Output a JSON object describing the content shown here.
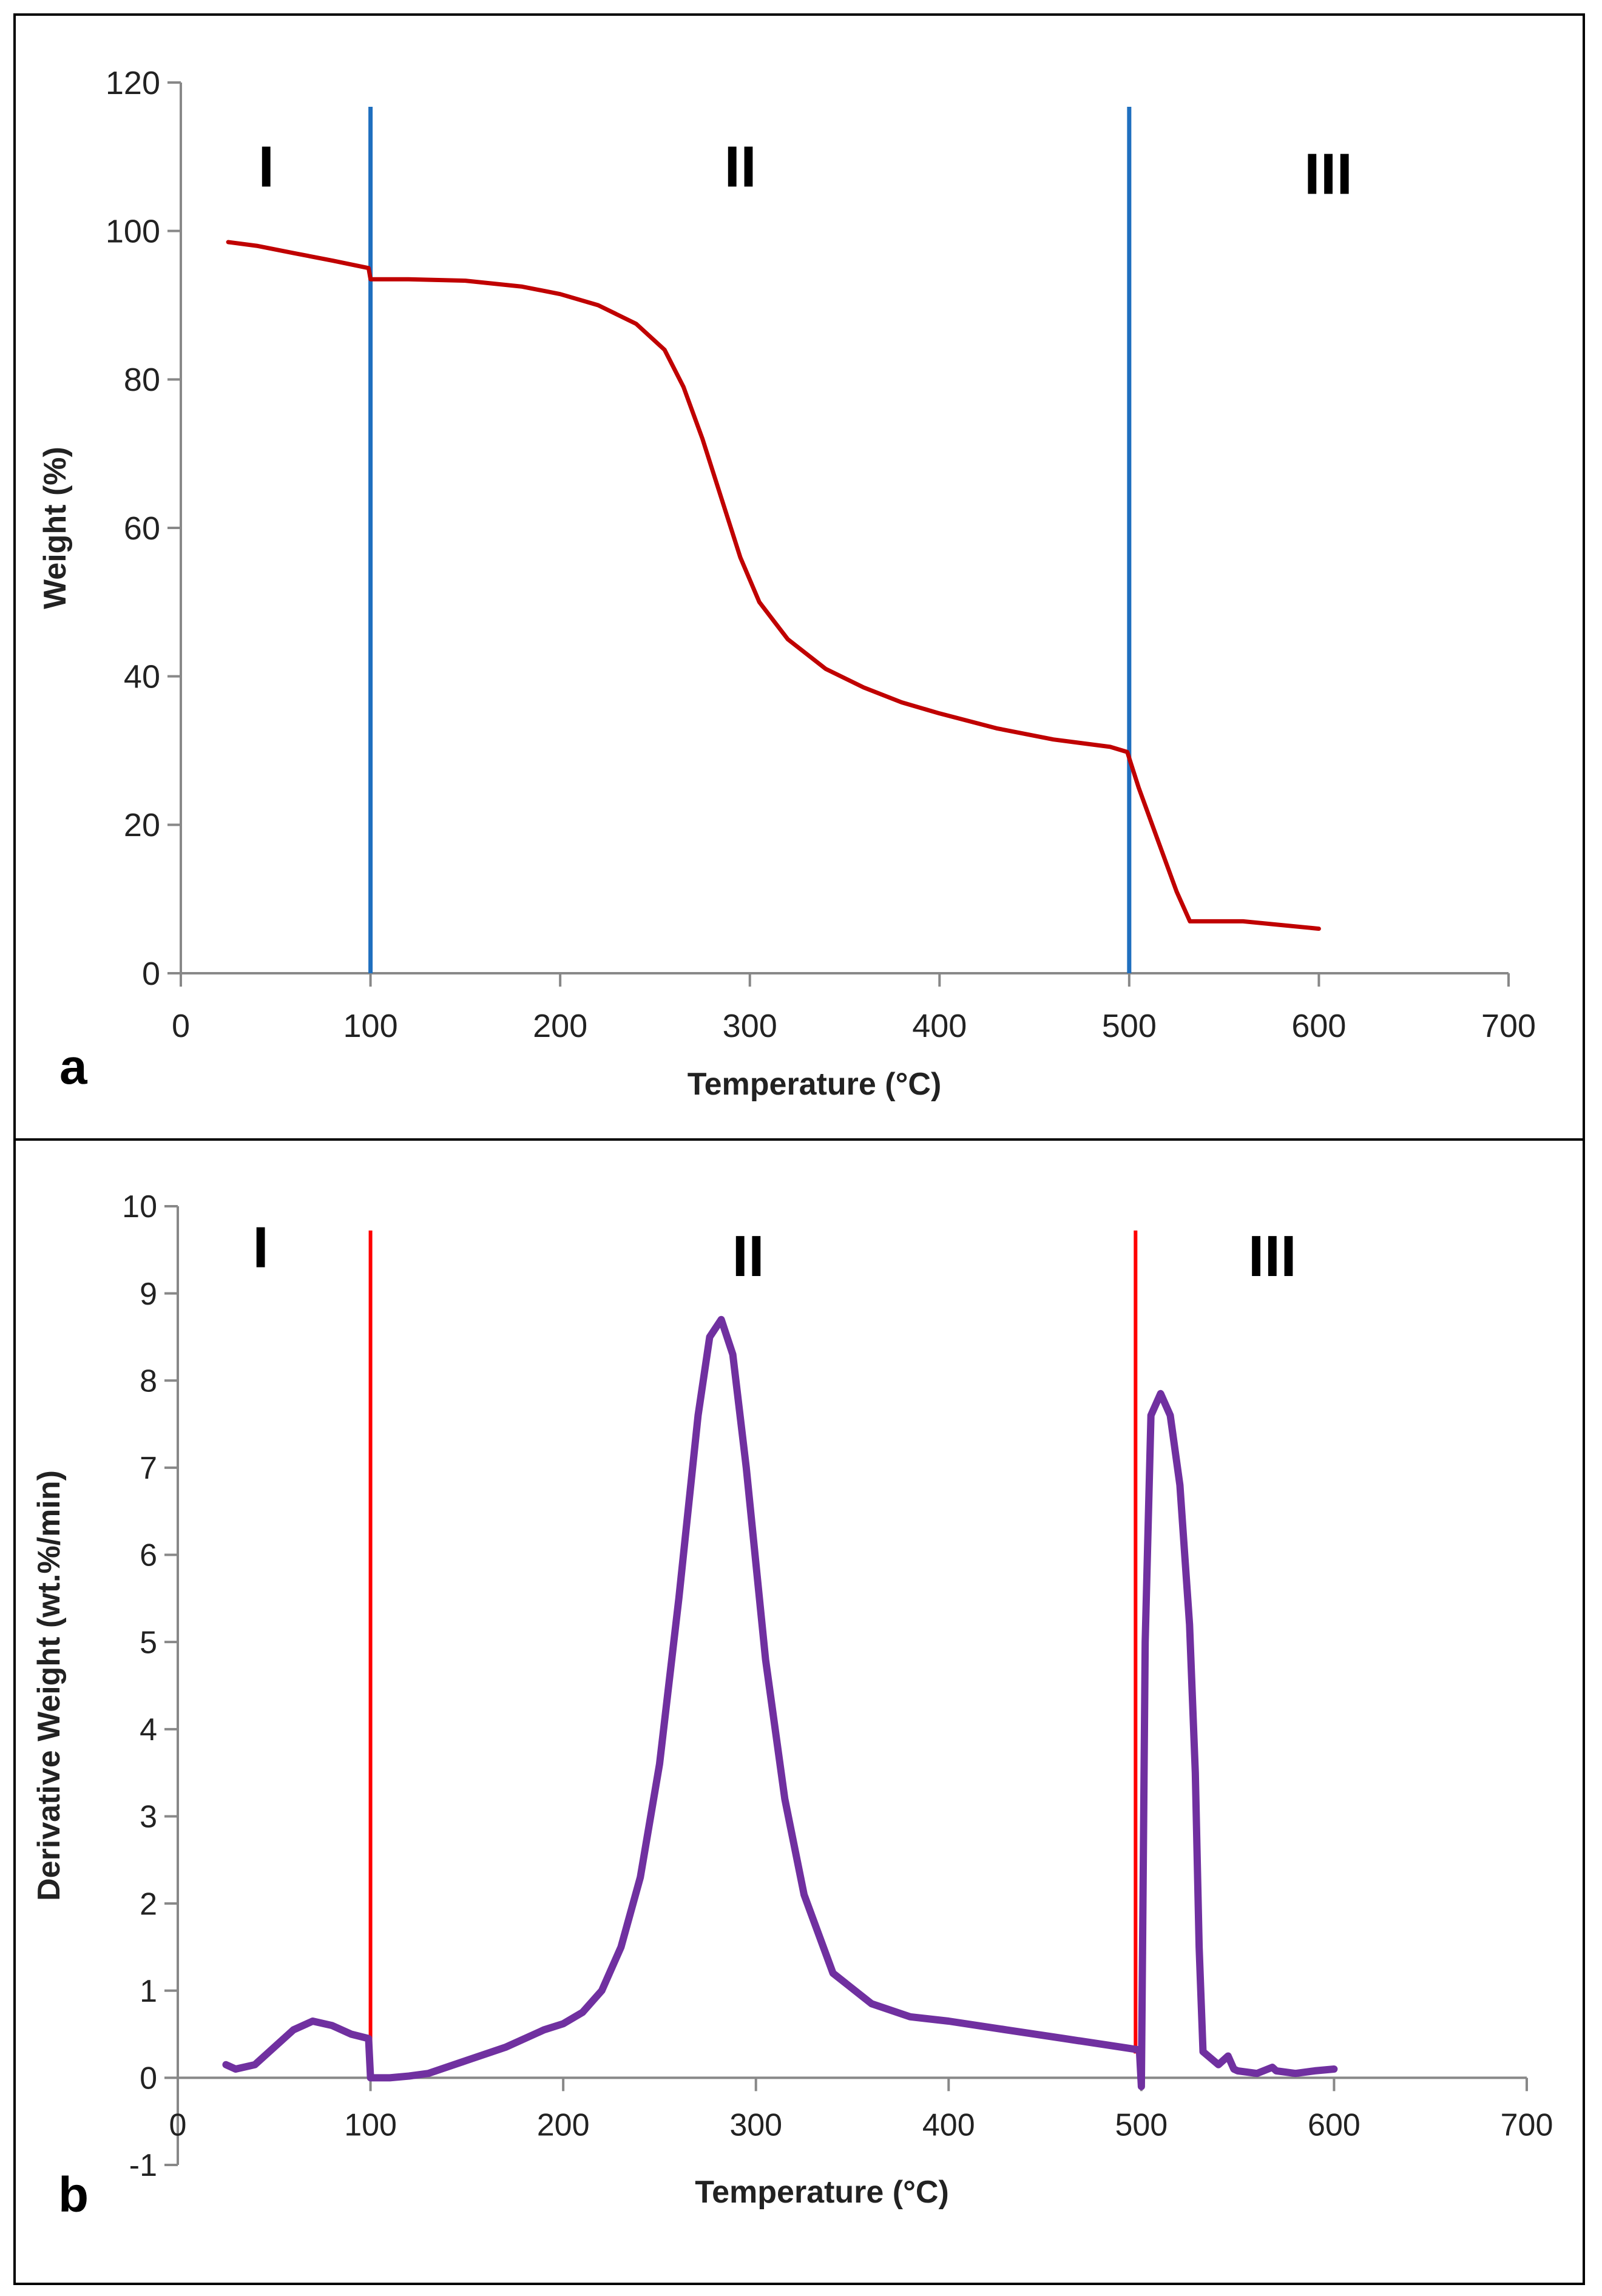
{
  "chart_data": [
    {
      "panel_label": "a",
      "type": "line",
      "title": "",
      "xlabel": "Temperature (°C)",
      "ylabel": "Weight (%)",
      "xlim": [
        0,
        700
      ],
      "ylim": [
        0,
        120
      ],
      "xticks": [
        0,
        100,
        200,
        300,
        400,
        500,
        600,
        700
      ],
      "yticks": [
        0,
        20,
        40,
        60,
        80,
        100,
        120
      ],
      "grid": false,
      "series": [
        {
          "color": "#c00000",
          "x": [
            25,
            40,
            60,
            80,
            99,
            100,
            120,
            150,
            180,
            200,
            220,
            240,
            255,
            265,
            275,
            285,
            295,
            305,
            320,
            340,
            360,
            380,
            400,
            430,
            460,
            490,
            499,
            505,
            515,
            525,
            532,
            540,
            560,
            580,
            600
          ],
          "y": [
            98.5,
            98.0,
            97.0,
            96.0,
            95.0,
            93.5,
            93.5,
            93.3,
            92.5,
            91.5,
            90.0,
            87.5,
            84.0,
            79.0,
            72.0,
            64.0,
            56.0,
            50.0,
            45.0,
            41.0,
            38.5,
            36.5,
            35.0,
            33.0,
            31.5,
            30.5,
            29.8,
            25.0,
            18.0,
            11.0,
            7.0,
            7.0,
            7.0,
            6.5,
            6.0
          ]
        }
      ],
      "vlines": {
        "color": "#1f6fbf",
        "x": [
          100,
          500
        ]
      },
      "region_labels": [
        {
          "text": "I",
          "x": 45,
          "y": 106
        },
        {
          "text": "II",
          "x": 295,
          "y": 106
        },
        {
          "text": "III",
          "x": 605,
          "y": 105
        }
      ]
    },
    {
      "panel_label": "b",
      "type": "line",
      "title": "",
      "xlabel": "Temperature (°C)",
      "ylabel": "Derivative Weight (wt.%/min)",
      "xlim": [
        0,
        700
      ],
      "ylim": [
        -1,
        10
      ],
      "xticks": [
        0,
        100,
        200,
        300,
        400,
        500,
        600,
        700
      ],
      "yticks": [
        -1,
        0,
        1,
        2,
        3,
        4,
        5,
        6,
        7,
        8,
        9,
        10
      ],
      "grid": false,
      "series": [
        {
          "color": "#7030a0",
          "x": [
            25,
            30,
            40,
            50,
            60,
            70,
            80,
            90,
            99,
            100,
            110,
            120,
            130,
            150,
            170,
            190,
            200,
            210,
            220,
            230,
            240,
            250,
            260,
            270,
            276,
            282,
            288,
            295,
            305,
            315,
            325,
            340,
            360,
            380,
            400,
            430,
            460,
            490,
            499,
            500,
            502,
            505,
            510,
            515,
            520,
            525,
            528,
            530,
            532,
            540,
            545,
            548,
            550,
            560,
            568,
            570,
            580,
            590,
            600
          ],
          "y": [
            0.15,
            0.1,
            0.15,
            0.35,
            0.55,
            0.65,
            0.6,
            0.5,
            0.45,
            0.0,
            0.0,
            0.02,
            0.05,
            0.2,
            0.35,
            0.55,
            0.62,
            0.75,
            1.0,
            1.5,
            2.3,
            3.6,
            5.5,
            7.6,
            8.5,
            8.7,
            8.3,
            7.0,
            4.8,
            3.2,
            2.1,
            1.2,
            0.85,
            0.7,
            0.65,
            0.55,
            0.45,
            0.35,
            0.32,
            -0.1,
            5.0,
            7.6,
            7.85,
            7.6,
            6.8,
            5.2,
            3.5,
            1.5,
            0.3,
            0.15,
            0.25,
            0.1,
            0.08,
            0.05,
            0.12,
            0.08,
            0.05,
            0.08,
            0.1
          ]
        }
      ],
      "vlines": {
        "color": "#ff0000",
        "x": [
          100,
          497
        ]
      },
      "region_labels": [
        {
          "text": "I",
          "x": 43,
          "y": 9.3
        },
        {
          "text": "II",
          "x": 296,
          "y": 9.2
        },
        {
          "text": "III",
          "x": 568,
          "y": 9.2
        }
      ]
    }
  ]
}
